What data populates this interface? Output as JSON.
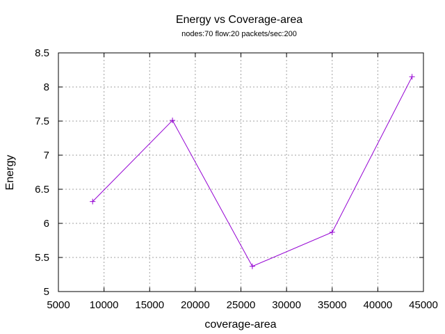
{
  "chart_data": {
    "type": "line",
    "title": "Energy vs Coverage-area",
    "subtitle": "nodes:70  flow:20  packets/sec:200",
    "xlabel": "coverage-area",
    "ylabel": "Energy",
    "xlim": [
      5000,
      45000
    ],
    "ylim": [
      5,
      8.5
    ],
    "xticks": [
      5000,
      10000,
      15000,
      20000,
      25000,
      30000,
      35000,
      40000,
      45000
    ],
    "yticks": [
      5,
      5.5,
      6,
      6.5,
      7,
      7.5,
      8,
      8.5
    ],
    "grid": true,
    "legend": "none",
    "series": [
      {
        "color": "#9400d3",
        "marker": "plus",
        "x": [
          8750,
          17500,
          26250,
          35000,
          43750
        ],
        "y": [
          6.32,
          7.51,
          5.37,
          5.87,
          8.15
        ]
      }
    ]
  }
}
